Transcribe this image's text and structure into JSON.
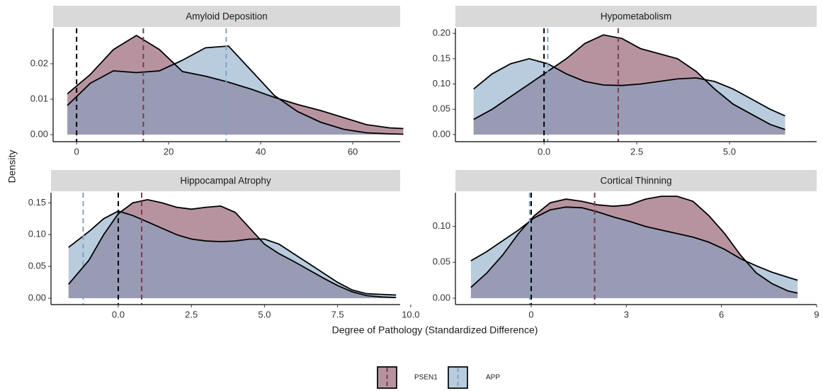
{
  "chart_data": [
    {
      "type": "area",
      "title": "Amyloid Deposition",
      "x": [
        -2,
        3,
        8,
        13,
        18,
        23,
        28,
        33,
        38,
        43,
        48,
        53,
        58,
        63,
        68,
        71
      ],
      "series": [
        {
          "name": "PSEN1",
          "color": "#7b3a52",
          "vline": 14.5,
          "values": [
            0.0115,
            0.017,
            0.024,
            0.028,
            0.024,
            0.0178,
            0.0165,
            0.0148,
            0.0128,
            0.0105,
            0.0085,
            0.0068,
            0.0048,
            0.0028,
            0.0019,
            0.0017
          ]
        },
        {
          "name": "APP",
          "color": "#7fa3c3",
          "vline": 32.5,
          "values": [
            0.0082,
            0.0145,
            0.018,
            0.0175,
            0.018,
            0.021,
            0.0245,
            0.025,
            0.018,
            0.011,
            0.0065,
            0.0035,
            0.0015,
            0.0005,
            0.0002,
            0.0001
          ]
        }
      ],
      "ref_line": 0,
      "xlim": [
        -5.1,
        70.3
      ],
      "ylim": [
        -0.002,
        0.03
      ],
      "xticks": [
        0,
        20,
        40,
        60
      ],
      "yticks": [
        {
          "value": 0,
          "label": "0.00"
        },
        {
          "value": 0.01,
          "label": "0.01"
        },
        {
          "value": 0.02,
          "label": "0.02"
        }
      ]
    },
    {
      "type": "area",
      "title": "Hypometabolism",
      "x": [
        -1.9,
        -1.4,
        -0.9,
        -0.4,
        0.1,
        0.6,
        1.1,
        1.6,
        2.1,
        2.6,
        3.1,
        3.6,
        4.1,
        4.6,
        5.1,
        5.6,
        6.1,
        6.5
      ],
      "series": [
        {
          "name": "PSEN1",
          "color": "#7b3a52",
          "vline": 2.0,
          "values": [
            0.03,
            0.05,
            0.075,
            0.1,
            0.125,
            0.15,
            0.18,
            0.197,
            0.19,
            0.17,
            0.16,
            0.15,
            0.125,
            0.09,
            0.06,
            0.04,
            0.02,
            0.01
          ]
        },
        {
          "name": "APP",
          "color": "#7fa3c3",
          "vline": 0.1,
          "values": [
            0.09,
            0.12,
            0.14,
            0.15,
            0.14,
            0.12,
            0.105,
            0.098,
            0.097,
            0.1,
            0.105,
            0.11,
            0.112,
            0.105,
            0.09,
            0.07,
            0.05,
            0.037
          ]
        }
      ],
      "ref_line": 0,
      "xlim": [
        -2.39,
        7.35
      ],
      "ylim": [
        -0.014,
        0.21
      ],
      "xticks": [
        {
          "value": 0,
          "label": "0.0"
        },
        2.5,
        {
          "value": 5,
          "label": "5.0"
        }
      ],
      "yticks": [
        {
          "value": 0,
          "label": "0.00"
        },
        {
          "value": 0.05,
          "label": "0.05"
        },
        {
          "value": 0.1,
          "label": "0.10"
        },
        {
          "value": 0.15,
          "label": "0.15"
        },
        {
          "value": 0.2,
          "label": "0.20"
        }
      ]
    },
    {
      "type": "area",
      "title": "Hippocampal Atrophy",
      "x": [
        -1.7,
        -1,
        -0.5,
        0,
        0.5,
        1,
        1.5,
        2,
        2.5,
        3,
        3.5,
        4,
        4.5,
        5,
        5.5,
        6,
        6.5,
        7,
        7.5,
        8,
        8.5,
        9,
        9.5
      ],
      "series": [
        {
          "name": "PSEN1",
          "color": "#7b3a52",
          "vline": 0.8,
          "values": [
            0.022,
            0.06,
            0.1,
            0.133,
            0.15,
            0.155,
            0.15,
            0.143,
            0.14,
            0.143,
            0.145,
            0.135,
            0.11,
            0.085,
            0.07,
            0.058,
            0.045,
            0.032,
            0.02,
            0.01,
            0.004,
            0.002,
            0.001
          ]
        },
        {
          "name": "APP",
          "color": "#7fa3c3",
          "vline": -1.2,
          "values": [
            0.08,
            0.105,
            0.125,
            0.137,
            0.13,
            0.12,
            0.11,
            0.1,
            0.093,
            0.09,
            0.089,
            0.09,
            0.093,
            0.093,
            0.085,
            0.07,
            0.055,
            0.04,
            0.025,
            0.013,
            0.007,
            0.006,
            0.005
          ]
        }
      ],
      "ref_line": 0,
      "xlim": [
        -2.3,
        9.64
      ],
      "ylim": [
        -0.01,
        0.166
      ],
      "xticks": [
        {
          "value": 0,
          "label": "0.0"
        },
        2.5,
        {
          "value": 5,
          "label": "5.0"
        },
        7.5,
        {
          "value": 10,
          "label": "10.0"
        }
      ],
      "yticks": [
        {
          "value": 0,
          "label": "0.00"
        },
        {
          "value": 0.05,
          "label": "0.05"
        },
        {
          "value": 0.1,
          "label": "0.10"
        },
        {
          "value": 0.15,
          "label": "0.15"
        }
      ]
    },
    {
      "type": "area",
      "title": "Cortical Thinning",
      "x": [
        -1.9,
        -1.4,
        -0.9,
        -0.4,
        0.1,
        0.6,
        1.1,
        1.6,
        2.1,
        2.6,
        3.1,
        3.6,
        4.1,
        4.6,
        5.1,
        5.6,
        6.1,
        6.6,
        7.1,
        7.6,
        8.1,
        8.4
      ],
      "series": [
        {
          "name": "PSEN1",
          "color": "#7b3a52",
          "vline": 2.0,
          "values": [
            0.015,
            0.035,
            0.06,
            0.09,
            0.115,
            0.133,
            0.138,
            0.135,
            0.13,
            0.128,
            0.13,
            0.138,
            0.142,
            0.142,
            0.135,
            0.115,
            0.09,
            0.06,
            0.035,
            0.02,
            0.01,
            0.007
          ]
        },
        {
          "name": "APP",
          "color": "#7fa3c3",
          "vline": -0.05,
          "values": [
            0.052,
            0.065,
            0.08,
            0.095,
            0.112,
            0.123,
            0.127,
            0.126,
            0.12,
            0.113,
            0.107,
            0.1,
            0.095,
            0.09,
            0.085,
            0.078,
            0.068,
            0.055,
            0.045,
            0.036,
            0.029,
            0.025
          ]
        }
      ],
      "ref_line": 0,
      "xlim": [
        -2.39,
        9.0
      ],
      "ylim": [
        -0.009,
        0.147
      ],
      "xticks": [
        0,
        3,
        6,
        9
      ],
      "yticks": [
        {
          "value": 0,
          "label": "0.00"
        },
        {
          "value": 0.05,
          "label": "0.05"
        },
        {
          "value": 0.1,
          "label": "0.10"
        }
      ]
    }
  ],
  "y_label": "Density",
  "x_label": "Degree of Pathology (Standardized Difference)"
}
